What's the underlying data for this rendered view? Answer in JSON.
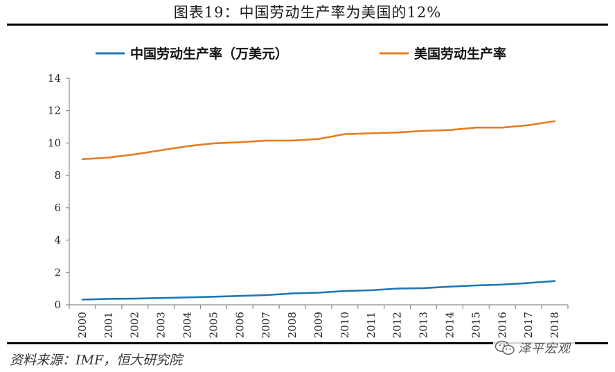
{
  "figure_title": "图表19：中国劳动生产率为美国的12%",
  "source_note": "资料来源：IMF，恒大研究院",
  "watermark": {
    "text": "泽平宏观",
    "icon": "wechat-icon"
  },
  "colors": {
    "china": "#1f77b4",
    "usa": "#e37e22",
    "axis": "#8c8c8c",
    "rule": "#000000"
  },
  "chart_data": {
    "type": "line",
    "x": [
      "2000",
      "2001",
      "2002",
      "2003",
      "2004",
      "2005",
      "2006",
      "2007",
      "2008",
      "2009",
      "2010",
      "2011",
      "2012",
      "2013",
      "2014",
      "2015",
      "2016",
      "2017",
      "2018"
    ],
    "series": [
      {
        "name": "中国劳动生产率（万美元）",
        "values": [
          0.32,
          0.37,
          0.38,
          0.42,
          0.46,
          0.5,
          0.55,
          0.6,
          0.7,
          0.75,
          0.85,
          0.9,
          1.0,
          1.03,
          1.12,
          1.2,
          1.25,
          1.35,
          1.47
        ]
      },
      {
        "name": "美国劳动生产率",
        "values": [
          9.0,
          9.1,
          9.3,
          9.55,
          9.8,
          9.98,
          10.05,
          10.15,
          10.15,
          10.25,
          10.55,
          10.6,
          10.65,
          10.75,
          10.8,
          10.95,
          10.95,
          11.1,
          11.35
        ]
      }
    ],
    "ylim": [
      0,
      14
    ],
    "yticks": [
      0,
      2,
      4,
      6,
      8,
      10,
      12,
      14
    ],
    "grid": false,
    "legend_position": "top",
    "xlabel": "",
    "ylabel": ""
  }
}
